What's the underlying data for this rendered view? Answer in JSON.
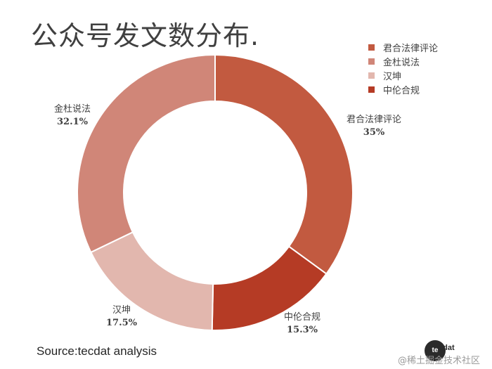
{
  "title": "公众号发文数分布.",
  "source": "Source:tecdat analysis",
  "watermark": {
    "logo_text": "te",
    "brand": "cdat",
    "text": "@稀土掘金技术社区"
  },
  "colors": {
    "background": "#ffffff",
    "text": "#404040"
  },
  "chart_data": {
    "type": "pie",
    "subtype": "donut",
    "title": "公众号发文数分布.",
    "legend_position": "top-right",
    "start_angle_deg": 0,
    "direction": "clockwise",
    "slices": [
      {
        "name": "君合法律评论",
        "value": 35.0,
        "label": "35%",
        "color": "#c25a40"
      },
      {
        "name": "中伦合规",
        "value": 15.3,
        "label": "15.3%",
        "color": "#b53b25"
      },
      {
        "name": "汉坤",
        "value": 17.5,
        "label": "17.5%",
        "color": "#e2b7ae"
      },
      {
        "name": "金杜说法",
        "value": 32.1,
        "label": "32.1%",
        "color": "#d08678"
      }
    ],
    "legend": [
      {
        "name": "君合法律评论",
        "color": "#c25a40"
      },
      {
        "name": "金杜说法",
        "color": "#d08678"
      },
      {
        "name": "汉坤",
        "color": "#e2b7ae"
      },
      {
        "name": "中伦合规",
        "color": "#b53b25"
      }
    ]
  }
}
